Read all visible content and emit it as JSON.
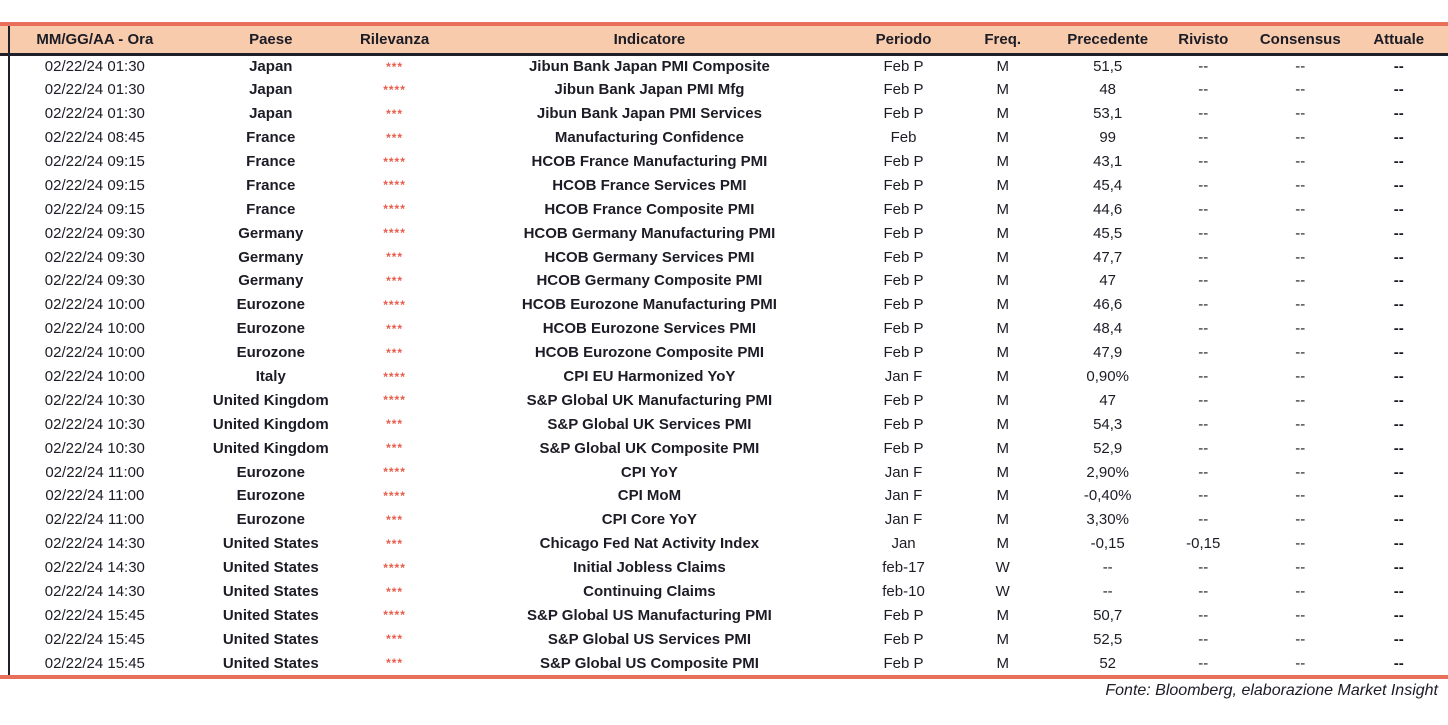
{
  "table": {
    "columns": [
      {
        "key": "datetime",
        "label": "MM/GG/AA - Ora"
      },
      {
        "key": "country",
        "label": "Paese"
      },
      {
        "key": "relevance",
        "label": "Rilevanza"
      },
      {
        "key": "indicator",
        "label": "Indicatore"
      },
      {
        "key": "period",
        "label": "Periodo"
      },
      {
        "key": "freq",
        "label": "Freq."
      },
      {
        "key": "previous",
        "label": "Precedente"
      },
      {
        "key": "revised",
        "label": "Rivisto"
      },
      {
        "key": "consensus",
        "label": "Consensus"
      },
      {
        "key": "actual",
        "label": "Attuale"
      }
    ],
    "rows": [
      {
        "datetime": "02/22/24 01:30",
        "country": "Japan",
        "relevance": "***",
        "indicator": "Jibun Bank Japan PMI Composite",
        "period": "Feb P",
        "freq": "M",
        "previous": "51,5",
        "revised": "--",
        "consensus": "--",
        "actual": "--"
      },
      {
        "datetime": "02/22/24 01:30",
        "country": "Japan",
        "relevance": "****",
        "indicator": "Jibun Bank Japan PMI Mfg",
        "period": "Feb P",
        "freq": "M",
        "previous": "48",
        "revised": "--",
        "consensus": "--",
        "actual": "--"
      },
      {
        "datetime": "02/22/24 01:30",
        "country": "Japan",
        "relevance": "***",
        "indicator": "Jibun Bank Japan PMI Services",
        "period": "Feb P",
        "freq": "M",
        "previous": "53,1",
        "revised": "--",
        "consensus": "--",
        "actual": "--"
      },
      {
        "datetime": "02/22/24 08:45",
        "country": "France",
        "relevance": "***",
        "indicator": "Manufacturing Confidence",
        "period": "Feb",
        "freq": "M",
        "previous": "99",
        "revised": "--",
        "consensus": "--",
        "actual": "--"
      },
      {
        "datetime": "02/22/24 09:15",
        "country": "France",
        "relevance": "****",
        "indicator": "HCOB France Manufacturing PMI",
        "period": "Feb P",
        "freq": "M",
        "previous": "43,1",
        "revised": "--",
        "consensus": "--",
        "actual": "--"
      },
      {
        "datetime": "02/22/24 09:15",
        "country": "France",
        "relevance": "****",
        "indicator": "HCOB France Services PMI",
        "period": "Feb P",
        "freq": "M",
        "previous": "45,4",
        "revised": "--",
        "consensus": "--",
        "actual": "--"
      },
      {
        "datetime": "02/22/24 09:15",
        "country": "France",
        "relevance": "****",
        "indicator": "HCOB France Composite PMI",
        "period": "Feb P",
        "freq": "M",
        "previous": "44,6",
        "revised": "--",
        "consensus": "--",
        "actual": "--"
      },
      {
        "datetime": "02/22/24 09:30",
        "country": "Germany",
        "relevance": "****",
        "indicator": "HCOB Germany Manufacturing PMI",
        "period": "Feb P",
        "freq": "M",
        "previous": "45,5",
        "revised": "--",
        "consensus": "--",
        "actual": "--"
      },
      {
        "datetime": "02/22/24 09:30",
        "country": "Germany",
        "relevance": "***",
        "indicator": "HCOB Germany Services PMI",
        "period": "Feb P",
        "freq": "M",
        "previous": "47,7",
        "revised": "--",
        "consensus": "--",
        "actual": "--"
      },
      {
        "datetime": "02/22/24 09:30",
        "country": "Germany",
        "relevance": "***",
        "indicator": "HCOB Germany Composite PMI",
        "period": "Feb P",
        "freq": "M",
        "previous": "47",
        "revised": "--",
        "consensus": "--",
        "actual": "--"
      },
      {
        "datetime": "02/22/24 10:00",
        "country": "Eurozone",
        "relevance": "****",
        "indicator": "HCOB Eurozone Manufacturing PMI",
        "period": "Feb P",
        "freq": "M",
        "previous": "46,6",
        "revised": "--",
        "consensus": "--",
        "actual": "--"
      },
      {
        "datetime": "02/22/24 10:00",
        "country": "Eurozone",
        "relevance": "***",
        "indicator": "HCOB Eurozone Services PMI",
        "period": "Feb P",
        "freq": "M",
        "previous": "48,4",
        "revised": "--",
        "consensus": "--",
        "actual": "--"
      },
      {
        "datetime": "02/22/24 10:00",
        "country": "Eurozone",
        "relevance": "***",
        "indicator": "HCOB Eurozone Composite PMI",
        "period": "Feb P",
        "freq": "M",
        "previous": "47,9",
        "revised": "--",
        "consensus": "--",
        "actual": "--"
      },
      {
        "datetime": "02/22/24 10:00",
        "country": "Italy",
        "relevance": "****",
        "indicator": "CPI EU Harmonized YoY",
        "period": "Jan F",
        "freq": "M",
        "previous": "0,90%",
        "revised": "--",
        "consensus": "--",
        "actual": "--"
      },
      {
        "datetime": "02/22/24 10:30",
        "country": "United Kingdom",
        "relevance": "****",
        "indicator": "S&P Global UK Manufacturing PMI",
        "period": "Feb P",
        "freq": "M",
        "previous": "47",
        "revised": "--",
        "consensus": "--",
        "actual": "--"
      },
      {
        "datetime": "02/22/24 10:30",
        "country": "United Kingdom",
        "relevance": "***",
        "indicator": "S&P Global UK Services PMI",
        "period": "Feb P",
        "freq": "M",
        "previous": "54,3",
        "revised": "--",
        "consensus": "--",
        "actual": "--"
      },
      {
        "datetime": "02/22/24 10:30",
        "country": "United Kingdom",
        "relevance": "***",
        "indicator": "S&P Global UK Composite PMI",
        "period": "Feb P",
        "freq": "M",
        "previous": "52,9",
        "revised": "--",
        "consensus": "--",
        "actual": "--"
      },
      {
        "datetime": "02/22/24 11:00",
        "country": "Eurozone",
        "relevance": "****",
        "indicator": "CPI YoY",
        "period": "Jan F",
        "freq": "M",
        "previous": "2,90%",
        "revised": "--",
        "consensus": "--",
        "actual": "--"
      },
      {
        "datetime": "02/22/24 11:00",
        "country": "Eurozone",
        "relevance": "****",
        "indicator": "CPI MoM",
        "period": "Jan F",
        "freq": "M",
        "previous": "-0,40%",
        "revised": "--",
        "consensus": "--",
        "actual": "--"
      },
      {
        "datetime": "02/22/24 11:00",
        "country": "Eurozone",
        "relevance": "***",
        "indicator": "CPI Core YoY",
        "period": "Jan F",
        "freq": "M",
        "previous": "3,30%",
        "revised": "--",
        "consensus": "--",
        "actual": "--"
      },
      {
        "datetime": "02/22/24 14:30",
        "country": "United States",
        "relevance": "***",
        "indicator": "Chicago Fed Nat Activity Index",
        "period": "Jan",
        "freq": "M",
        "previous": "-0,15",
        "revised": "-0,15",
        "consensus": "--",
        "actual": "--"
      },
      {
        "datetime": "02/22/24 14:30",
        "country": "United States",
        "relevance": "****",
        "indicator": "Initial Jobless Claims",
        "period": "feb-17",
        "freq": "W",
        "previous": "--",
        "revised": "--",
        "consensus": "--",
        "actual": "--"
      },
      {
        "datetime": "02/22/24 14:30",
        "country": "United States",
        "relevance": "***",
        "indicator": "Continuing Claims",
        "period": "feb-10",
        "freq": "W",
        "previous": "--",
        "revised": "--",
        "consensus": "--",
        "actual": "--"
      },
      {
        "datetime": "02/22/24 15:45",
        "country": "United States",
        "relevance": "****",
        "indicator": "S&P Global US Manufacturing PMI",
        "period": "Feb P",
        "freq": "M",
        "previous": "50,7",
        "revised": "--",
        "consensus": "--",
        "actual": "--"
      },
      {
        "datetime": "02/22/24 15:45",
        "country": "United States",
        "relevance": "***",
        "indicator": "S&P Global US Services PMI",
        "period": "Feb P",
        "freq": "M",
        "previous": "52,5",
        "revised": "--",
        "consensus": "--",
        "actual": "--"
      },
      {
        "datetime": "02/22/24 15:45",
        "country": "United States",
        "relevance": "***",
        "indicator": "S&P Global US Composite PMI",
        "period": "Feb P",
        "freq": "M",
        "previous": "52",
        "revised": "--",
        "consensus": "--",
        "actual": "--"
      }
    ]
  },
  "footer": {
    "source_note": "Fonte: Bloomberg, elaborazione Market Insight"
  },
  "colors": {
    "accent_line": "#E8705A",
    "header_bg": "#F8CBAD",
    "dark_border": "#20202B",
    "text": "#1C1C26",
    "star": "#E95C4B"
  },
  "icons": {
    "relevance_star": "*"
  }
}
